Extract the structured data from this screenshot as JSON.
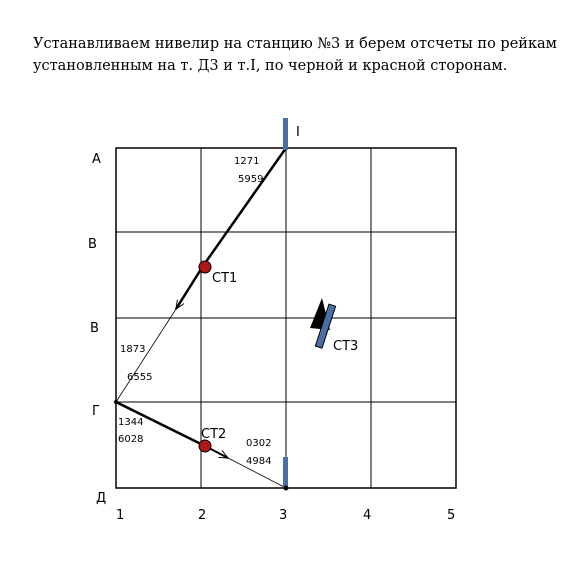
{
  "caption": {
    "line1": "Устанавливаем нивелир на станцию №3 и берем отсчеты по рейкам",
    "line2": "установленным на т. Д3 и т.I, по черной и красной сторонам."
  },
  "grid": {
    "row_labels": [
      "А",
      "В",
      "В",
      "Г",
      "Д"
    ],
    "col_labels": [
      "1",
      "2",
      "3",
      "4",
      "5"
    ]
  },
  "points": {
    "top_rod_label": "I",
    "st1": "СТ1",
    "st2": "СТ2",
    "st3": "СТ3"
  },
  "readings": {
    "top_black": "1271",
    "top_red": "5959",
    "left_black": "1873",
    "left_red": "6555",
    "g_black": "1344",
    "g_red": "6028",
    "bottom_black": "0302",
    "bottom_red": "4984"
  },
  "colors": {
    "rod": "#4a6fa5",
    "station": "#c0201a",
    "line": "#000000"
  }
}
